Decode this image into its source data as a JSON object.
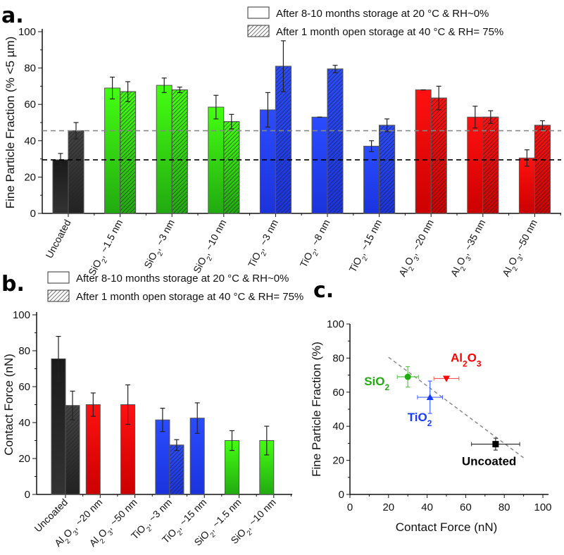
{
  "colors": {
    "uncoated": "#111111",
    "sio2": "#33ee00",
    "tio2": "#2244ff",
    "al2o3": "#ff0000",
    "dash_fresh": "#000000",
    "dash_aged": "#888888"
  },
  "chart_data": [
    {
      "panel": "a.",
      "type": "bar",
      "ylabel": "Fine Particle Fraction (% <5 µm)",
      "ylim": [
        0,
        100
      ],
      "yticks": [
        "0",
        "20",
        "40",
        "60",
        "80",
        "100"
      ],
      "legend": [
        "After 8-10 months storage at 20 °C & RH~0%",
        "After 1 month open storage at 40 °C & RH= 75%"
      ],
      "legend_placement": "top-right",
      "reference_lines": [
        {
          "value": 29.5,
          "color": "dash_fresh"
        },
        {
          "value": 45.5,
          "color": "dash_aged"
        }
      ],
      "categories": [
        {
          "parts": [
            "Uncoated"
          ],
          "group": "uncoated"
        },
        {
          "parts": [
            "SiO",
            "2",
            ", ~1.5 nm"
          ],
          "group": "sio2"
        },
        {
          "parts": [
            "SiO",
            "2",
            ", ~3 nm"
          ],
          "group": "sio2"
        },
        {
          "parts": [
            "SiO",
            "2",
            ", ~10 nm"
          ],
          "group": "sio2"
        },
        {
          "parts": [
            "TiO",
            "2",
            ", ~3 nm"
          ],
          "group": "tio2"
        },
        {
          "parts": [
            "TiO",
            "2",
            ", ~8 nm"
          ],
          "group": "tio2"
        },
        {
          "parts": [
            "TiO",
            "2",
            ", ~15 nm"
          ],
          "group": "tio2"
        },
        {
          "parts": [
            "Al",
            "2",
            "O",
            "3",
            ", ~20 nm"
          ],
          "group": "al2o3"
        },
        {
          "parts": [
            "Al",
            "2",
            "O",
            "3",
            ", ~35 nm"
          ],
          "group": "al2o3"
        },
        {
          "parts": [
            "Al",
            "2",
            "O",
            "3",
            ", ~50 nm"
          ],
          "group": "al2o3"
        }
      ],
      "series": [
        {
          "name": "After 8-10 months storage at 20 °C & RH~0%",
          "values": [
            29.5,
            69,
            70.5,
            58.5,
            57,
            53,
            37,
            68,
            53,
            30.5
          ],
          "errors": [
            3.5,
            6,
            4,
            6.5,
            9.5,
            0,
            3,
            0,
            6,
            4.5
          ]
        },
        {
          "name": "After 1 month open storage at 40 °C & RH= 75%",
          "values": [
            45.5,
            67,
            68,
            50.5,
            81,
            79.5,
            48.5,
            63.5,
            53,
            48.5
          ],
          "errors": [
            4.5,
            5.5,
            1.5,
            4,
            14,
            2,
            3.5,
            6.5,
            3.5,
            2.5
          ]
        }
      ]
    },
    {
      "panel": "b.",
      "type": "bar",
      "ylabel": "Contact Force (nN)",
      "ylim": [
        0,
        100
      ],
      "yticks": [
        "0",
        "20",
        "40",
        "60",
        "80",
        "100"
      ],
      "legend": [
        "After 8-10 months storage at 20 °C & RH~0%",
        "After 1 month open storage at 40 °C & RH= 75%"
      ],
      "legend_placement": "top-left",
      "categories": [
        {
          "parts": [
            "Uncoated"
          ],
          "group": "uncoated"
        },
        {
          "parts": [
            "Al",
            "2",
            "O",
            "3",
            ", ~20 nm"
          ],
          "group": "al2o3"
        },
        {
          "parts": [
            "Al",
            "2",
            "O",
            "3",
            ", ~50 nm"
          ],
          "group": "al2o3"
        },
        {
          "parts": [
            "TiO",
            "2",
            ", ~3 nm"
          ],
          "group": "tio2"
        },
        {
          "parts": [
            "TiO",
            "2",
            ", ~15 nm"
          ],
          "group": "tio2"
        },
        {
          "parts": [
            "SiO",
            "2",
            ", ~1.5 nm"
          ],
          "group": "sio2"
        },
        {
          "parts": [
            "SiO",
            "2",
            ", ~10 nm"
          ],
          "group": "sio2"
        }
      ],
      "series": [
        {
          "name": "After 8-10 months storage at 20 °C & RH~0%",
          "values": [
            75.5,
            50,
            50,
            41.5,
            42.5,
            30,
            30
          ],
          "errors": [
            12.5,
            6.5,
            11,
            6.5,
            8.5,
            5.5,
            8
          ]
        },
        {
          "name": "After 1 month open storage at 40 °C & RH= 75%",
          "values": [
            49.5,
            null,
            null,
            27.5,
            null,
            null,
            null
          ],
          "errors": [
            8,
            null,
            null,
            3,
            null,
            null,
            null
          ]
        }
      ]
    },
    {
      "panel": "c.",
      "type": "scatter",
      "xlabel": "Contact Force (nN)",
      "ylabel": "Fine Particle Fraction (%)",
      "xlim": [
        0,
        100
      ],
      "ylim": [
        0,
        100
      ],
      "xticks": [
        "0",
        "20",
        "40",
        "60",
        "80",
        "100"
      ],
      "yticks": [
        "0",
        "20",
        "40",
        "60",
        "80",
        "100"
      ],
      "points": [
        {
          "label_parts": [
            "SiO",
            "2"
          ],
          "group": "sio2",
          "marker": "circle",
          "x": 30,
          "y": 69,
          "xerr": 5.5,
          "yerr": 6
        },
        {
          "label_parts": [
            "TiO",
            "2"
          ],
          "group": "tio2",
          "marker": "triangle-up",
          "x": 41.5,
          "y": 57,
          "xerr": 6.5,
          "yerr": 9.5
        },
        {
          "label_parts": [
            "Al",
            "2",
            "O",
            "3"
          ],
          "group": "al2o3",
          "marker": "triangle-down",
          "x": 50,
          "y": 68,
          "xerr": 6.5,
          "yerr": 0
        },
        {
          "label_parts": [
            "Uncoated"
          ],
          "group": "uncoated",
          "marker": "square",
          "x": 75.5,
          "y": 29.5,
          "xerr": 12.5,
          "yerr": 3.5
        }
      ],
      "fit_line": {
        "x": [
          20,
          90
        ],
        "y": [
          80.5,
          21.5
        ]
      }
    }
  ]
}
